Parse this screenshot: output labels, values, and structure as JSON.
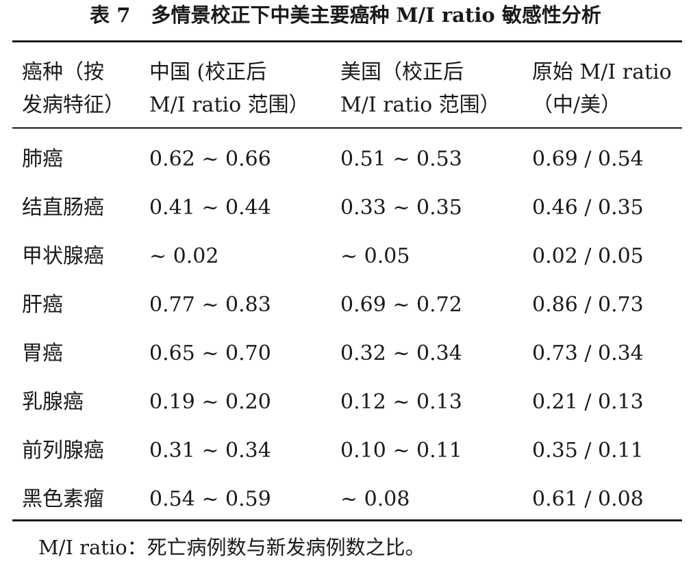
{
  "title": {
    "label": "表 7",
    "text": "多情景校正下中美主要癌种 M/I ratio 敏感性分析"
  },
  "table": {
    "headers": [
      {
        "line1": "癌种（按",
        "line2": "发病特征）"
      },
      {
        "line1": "中国 (校正后",
        "line2": "M/I ratio 范围）"
      },
      {
        "line1": "美国（校正后",
        "line2": "M/I ratio 范围）"
      },
      {
        "line1": "原始 M/I ratio",
        "line2": "（中/美）"
      }
    ],
    "rows": [
      [
        "肺癌",
        "0.62 ~ 0.66",
        "0.51 ~ 0.53",
        "0.69 / 0.54"
      ],
      [
        "结直肠癌",
        "0.41 ~ 0.44",
        "0.33 ~ 0.35",
        "0.46 / 0.35"
      ],
      [
        "甲状腺癌",
        " ~ 0.02",
        " ~ 0.05",
        "0.02 / 0.05"
      ],
      [
        "肝癌",
        "0.77 ~ 0.83",
        "0.69 ~ 0.72",
        "0.86 / 0.73"
      ],
      [
        "胃癌",
        "0.65 ~ 0.70",
        "0.32 ~ 0.34",
        "0.73 / 0.34"
      ],
      [
        "乳腺癌",
        "0.19 ~ 0.20",
        "0.12 ~ 0.13",
        "0.21 / 0.13"
      ],
      [
        "前列腺癌",
        "0.31 ~ 0.34",
        "0.10 ~ 0.11",
        "0.35 / 0.11"
      ],
      [
        "黑色素瘤",
        "0.54 ~ 0.59",
        " ~ 0.08",
        "0.61 / 0.08"
      ]
    ]
  },
  "footnote": "M/I ratio：死亡病例数与新发病例数之比。"
}
